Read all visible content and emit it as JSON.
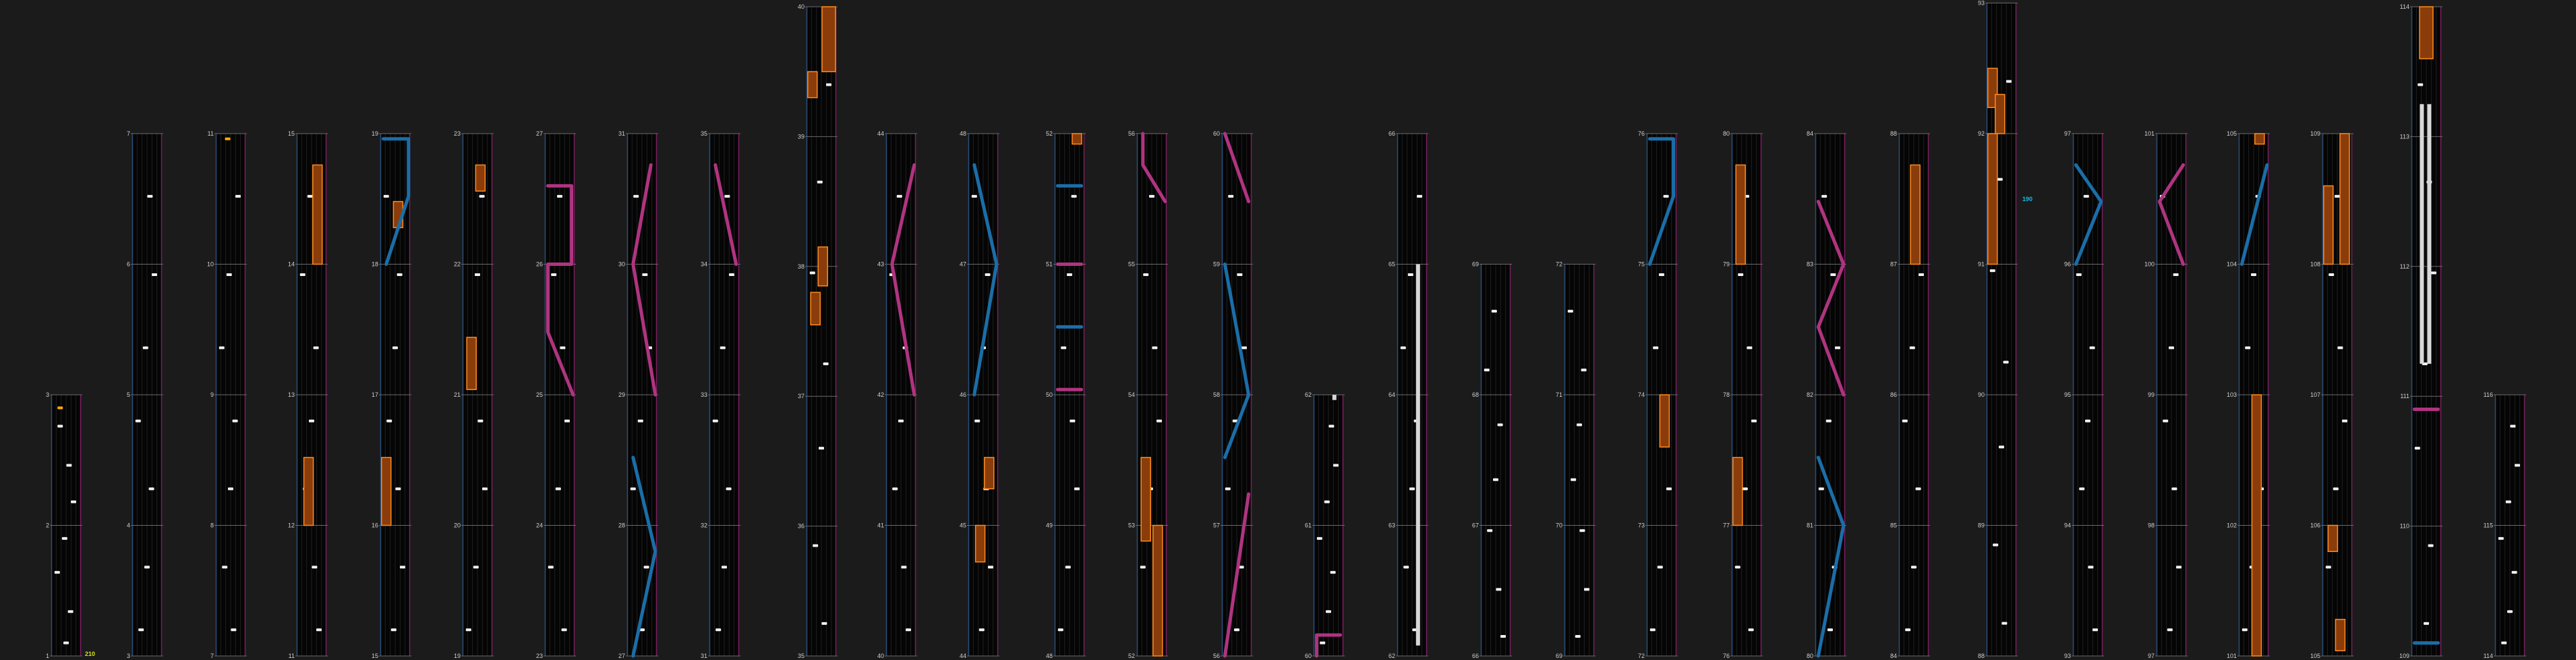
{
  "view": "Chart editor (overview of measures)",
  "colors": {
    "background": "#1b1b1b",
    "column_bg": "#050505",
    "measure_line": "#6a6a6a",
    "lane_left": "#2a4e7a",
    "lane_right": "#7a1f5e",
    "lane_grid": "#202020",
    "tap_note": "#f2f2f2",
    "gold_note": "#ffaa00",
    "hold_fill": "#8a3d0a",
    "hold_edge": "#ff8a1e",
    "slide_blue": "#1b6ea8",
    "slide_pink": "#b03480",
    "white_hold": "#d8d8d8",
    "hint_yellow": "#d4e020",
    "hint_blue": "#20b8e8",
    "label_text": "#cfcfcf"
  },
  "hints": {
    "combo_1": "210",
    "combo_2": "190"
  },
  "columns": [
    {
      "labels": [
        "3",
        "2",
        "1"
      ]
    },
    {
      "labels": [
        "7",
        "6",
        "5",
        "4",
        "3"
      ]
    },
    {
      "labels": [
        "11",
        "10",
        "9",
        "8",
        "7"
      ]
    },
    {
      "labels": [
        "15",
        "14",
        "13",
        "12",
        "11"
      ]
    },
    {
      "labels": [
        "19",
        "18",
        "17",
        "16",
        "15"
      ]
    },
    {
      "labels": [
        "23",
        "22",
        "21",
        "20",
        "19"
      ]
    },
    {
      "labels": [
        "27",
        "26",
        "25",
        "24",
        "23"
      ]
    },
    {
      "labels": [
        "31",
        "30",
        "29",
        "28",
        "27"
      ]
    },
    {
      "labels": [
        "35",
        "34",
        "33",
        "32",
        "31"
      ]
    },
    {
      "labels": [
        "40",
        "39",
        "38",
        "37",
        "36",
        "35"
      ]
    },
    {
      "labels": [
        "44",
        "43",
        "42",
        "41",
        "40"
      ]
    },
    {
      "labels": [
        "48",
        "47",
        "46",
        "45",
        "44"
      ]
    },
    {
      "labels": [
        "52",
        "51",
        "50",
        "49",
        "48"
      ]
    },
    {
      "labels": [
        "56",
        "55",
        "54",
        "53",
        "52"
      ]
    },
    {
      "labels": [
        "60",
        "59",
        "58",
        "57",
        "56"
      ]
    },
    {
      "labels": [
        "62",
        "61",
        "60"
      ]
    },
    {
      "labels": [
        "66",
        "65",
        "64",
        "63",
        "62"
      ]
    },
    {
      "labels": [
        "69",
        "68",
        "67",
        "66"
      ]
    },
    {
      "labels": [
        "72",
        "71",
        "70",
        "69"
      ]
    },
    {
      "labels": [
        "76",
        "75",
        "74",
        "73",
        "72"
      ]
    },
    {
      "labels": [
        "80",
        "79",
        "78",
        "77",
        "76"
      ]
    },
    {
      "labels": [
        "84",
        "83",
        "82",
        "81",
        "80"
      ]
    },
    {
      "labels": [
        "88",
        "87",
        "86",
        "85",
        "84"
      ]
    },
    {
      "labels": [
        "93",
        "92",
        "91",
        "90",
        "89",
        "88"
      ]
    },
    {
      "labels": [
        "97",
        "96",
        "95",
        "94",
        "93"
      ]
    },
    {
      "labels": [
        "101",
        "100",
        "99",
        "98",
        "97"
      ]
    },
    {
      "labels": [
        "105",
        "104",
        "103",
        "102",
        "101"
      ]
    },
    {
      "labels": [
        "109",
        "108",
        "107",
        "106",
        "105"
      ]
    },
    {
      "labels": [
        "114",
        "113",
        "112",
        "111",
        "110",
        "109"
      ]
    },
    {
      "labels": [
        "116",
        "115",
        "114"
      ]
    }
  ]
}
